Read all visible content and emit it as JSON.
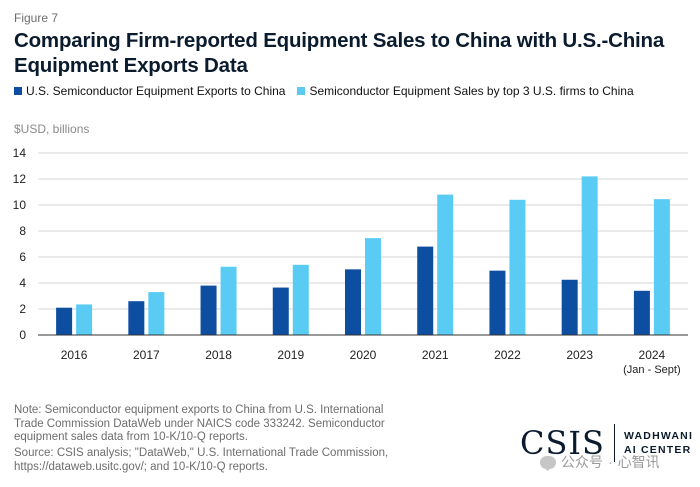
{
  "figure_label": "Figure 7",
  "title": "Comparing Firm-reported Equipment Sales to China with U.S.-China Equipment Exports Data",
  "unit_label": "$USD, billions",
  "colors": {
    "series1": "#0d4ea1",
    "series2": "#5acbf3",
    "grid": "#d4d4d4",
    "axis": "#333333"
  },
  "chart_data": {
    "type": "bar",
    "title": "Comparing Firm-reported Equipment Sales to China with U.S.-China Equipment Exports Data",
    "xlabel": "",
    "ylabel": "$USD, billions",
    "ylim": [
      0,
      14
    ],
    "yticks": [
      0,
      2,
      4,
      6,
      8,
      10,
      12,
      14
    ],
    "grid": true,
    "legend_position": "top-left",
    "categories": [
      "2016",
      "2017",
      "2018",
      "2019",
      "2020",
      "2021",
      "2022",
      "2023",
      "2024"
    ],
    "category_sublabels": [
      "",
      "",
      "",
      "",
      "",
      "",
      "",
      "",
      "(Jan - Sept)"
    ],
    "series": [
      {
        "name": "U.S. Semiconductor Equipment Exports to China",
        "color": "#0d4ea1",
        "values": [
          2.1,
          2.6,
          3.8,
          3.65,
          5.05,
          6.8,
          4.95,
          4.25,
          3.4
        ]
      },
      {
        "name": "Semiconductor Equipment Sales by top 3 U.S. firms to China",
        "color": "#5acbf3",
        "values": [
          2.35,
          3.3,
          5.25,
          5.4,
          7.45,
          10.8,
          10.4,
          12.2,
          10.45
        ]
      }
    ]
  },
  "note": "Note: Semiconductor equipment exports to China from U.S. International Trade Commission DataWeb under NAICS code 333242. Semiconductor equipment sales data from 10-K/10-Q reports.",
  "source": "Source: CSIS analysis; \"DataWeb,\" U.S. International Trade Commission, https://dataweb.usitc.gov/; and 10-K/10-Q reports.",
  "logo": {
    "main": "CSIS",
    "line1": "WADHWANI",
    "line2": "AI CENTER"
  },
  "watermark": {
    "left": "公众号",
    "separator": "·",
    "right": "心智讯"
  }
}
